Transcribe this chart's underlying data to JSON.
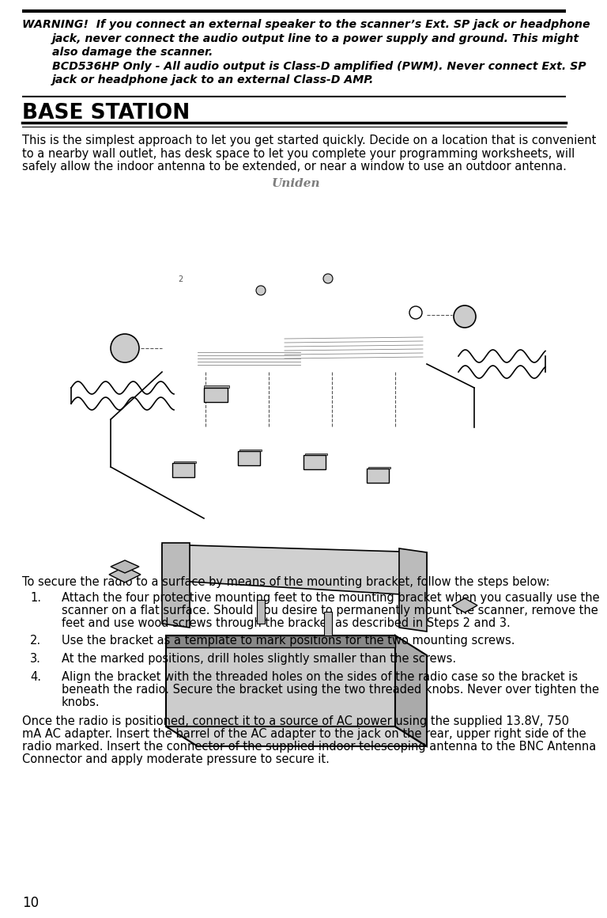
{
  "warning_line1": "WARNING!  If you connect an external speaker to the scanner’s Ext. SP jack or headphone",
  "warning_line2": "jack, never connect the audio output line to a power supply and ground. This might",
  "warning_line3": "also damage the scanner.",
  "warning_line4": "BCD536HP Only - All audio output is Class-D amplified (PWM). Never connect Ext. SP",
  "warning_line5": "jack or headphone jack to an external Class-D AMP.",
  "section_title": "BASE STATION",
  "intro_text": "This is the simplest approach to let you get started quickly. Decide on a location that is convenient\nto a nearby wall outlet, has desk space to let you complete your programming worksheets, will\nsafely allow the indoor antenna to be extended, or near a window to use an outdoor antenna.",
  "steps_intro": "To secure the radio to a surface by means of the mounting bracket, follow the steps below:",
  "step1": "Attach the four protective mounting feet to the mounting bracket when you casually use the\nscanner on a flat surface. Should you desire to permanently mount the scanner, remove the\nfeet and use wood screws through the bracket as described in Steps 2 and 3.",
  "step2": "Use the bracket as a template to mark positions for the two mounting screws.",
  "step3": "At the marked positions, drill holes slightly smaller than the screws.",
  "step4": "Align the bracket with the threaded holes on the sides of the radio case so the bracket is\nbeneath the radio. Secure the bracket using the two threaded knobs. Never over tighten the\nknobs.",
  "closing_text": "Once the radio is positioned, connect it to a source of AC power using the supplied 13.8V, 750\nmA AC adapter. Insert the barrel of the AC adapter to the jack on the rear, upper right side of the\nradio marked. Insert the connector of the supplied indoor telescoping antenna to the BNC Antenna\nConnector and apply moderate pressure to secure it.",
  "page_number": "10"
}
